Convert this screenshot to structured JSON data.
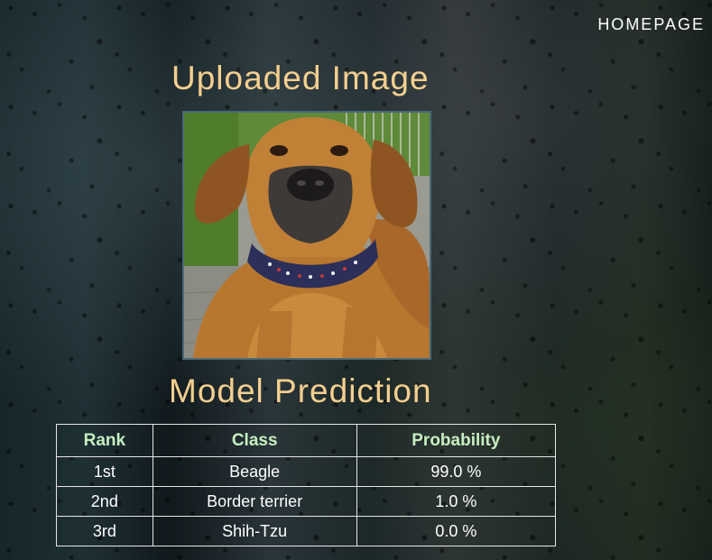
{
  "nav": {
    "homepage_label": "HOMEPAGE"
  },
  "upload": {
    "title": "Uploaded Image"
  },
  "prediction": {
    "title": "Model Prediction",
    "columns": [
      "Rank",
      "Class",
      "Probability"
    ],
    "rows": [
      {
        "rank": "1st",
        "class": "Beagle",
        "probability": "99.0 %"
      },
      {
        "rank": "2nd",
        "class": "Border terrier",
        "probability": "1.0 %"
      },
      {
        "rank": "3rd",
        "class": "Shih-Tzu",
        "probability": "0.0 %"
      }
    ]
  },
  "colors": {
    "title": "#f4cf8f",
    "header": "#c7efc0",
    "text": "#ffffff"
  }
}
